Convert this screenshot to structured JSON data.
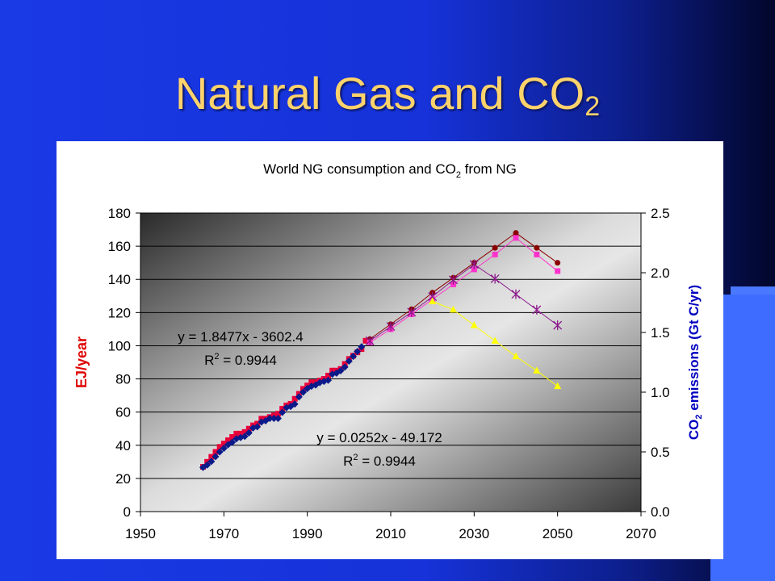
{
  "slide": {
    "title_main": "Natural Gas and CO",
    "title_sub": "2"
  },
  "colors": {
    "title": "#ffd36b",
    "left_axis_label": "#e00000",
    "right_axis_label": "#0000c0",
    "historic_ej": "#e8003a",
    "historic_co2": "#0a1a8a",
    "projection_ej": "#ff33cc",
    "projection_peak": "#8b0000",
    "projection_co2_star": "#8b1a8b",
    "projection_co2_low": "#ffff00"
  },
  "chart_data": {
    "type": "scatter",
    "title_main": "World NG consumption and CO",
    "title_sub": "2",
    "title_tail": " from NG",
    "ylabel_left": "EJ/year",
    "ylabel_right_pre": "CO",
    "ylabel_right_sub": "2",
    "ylabel_right_post": " emissions (Gt C/yr)",
    "xlim": [
      1950,
      2070
    ],
    "ylim_left": [
      0,
      180
    ],
    "ylim_right": [
      0,
      2.5
    ],
    "x_ticks": [
      1950,
      1970,
      1990,
      2010,
      2030,
      2050,
      2070
    ],
    "y_ticks_left": [
      0,
      20,
      40,
      60,
      80,
      100,
      120,
      140,
      160,
      180
    ],
    "y_ticks_right": [
      "0.0",
      "0.5",
      "1.0",
      "1.5",
      "2.0",
      "2.5"
    ],
    "grid": "horizontal",
    "annotations": [
      {
        "eq": "y = 1.8477x - 3602.4",
        "r2_pre": "R",
        "r2_sup": "2",
        "r2_post": " = 0.9944"
      },
      {
        "eq": "y = 0.0252x - 49.172",
        "r2_pre": "R",
        "r2_sup": "2",
        "r2_post": " = 0.9944"
      }
    ],
    "series": [
      {
        "axis": "left",
        "marker": "square",
        "color": "#e8003a",
        "x": [
          1965,
          1966,
          1967,
          1968,
          1969,
          1970,
          1971,
          1972,
          1973,
          1974,
          1975,
          1976,
          1977,
          1978,
          1979,
          1980,
          1981,
          1982,
          1983,
          1984,
          1985,
          1986,
          1987,
          1988,
          1989,
          1990,
          1991,
          1992,
          1993,
          1994,
          1995,
          1996,
          1997,
          1998,
          1999,
          2000,
          2001,
          2002,
          2003,
          2004
        ],
        "y": [
          27,
          30,
          33,
          36,
          39,
          41,
          43,
          45,
          47,
          47,
          48,
          50,
          52,
          53,
          56,
          56,
          57,
          58,
          59,
          62,
          64,
          65,
          68,
          71,
          74,
          76,
          78,
          78,
          79,
          80,
          82,
          85,
          85,
          86,
          89,
          92,
          94,
          96,
          98,
          103
        ]
      },
      {
        "axis": "right",
        "marker": "diamond",
        "color": "#0a1a8a",
        "x": [
          1965,
          1966,
          1967,
          1968,
          1969,
          1970,
          1971,
          1972,
          1973,
          1974,
          1975,
          1976,
          1977,
          1978,
          1979,
          1980,
          1981,
          1982,
          1983,
          1984,
          1985,
          1986,
          1987,
          1988,
          1989,
          1990,
          1991,
          1992,
          1993,
          1994,
          1995,
          1996,
          1997,
          1998,
          1999,
          2000,
          2001,
          2002,
          2003
        ],
        "y": [
          0.37,
          0.39,
          0.42,
          0.46,
          0.5,
          0.53,
          0.56,
          0.58,
          0.61,
          0.62,
          0.63,
          0.66,
          0.7,
          0.71,
          0.75,
          0.76,
          0.78,
          0.78,
          0.78,
          0.83,
          0.87,
          0.88,
          0.9,
          0.96,
          1.0,
          1.03,
          1.05,
          1.06,
          1.08,
          1.09,
          1.1,
          1.15,
          1.16,
          1.18,
          1.21,
          1.26,
          1.3,
          1.34,
          1.38
        ]
      },
      {
        "axis": "left",
        "marker": "circle",
        "color": "#8b0000",
        "x": [
          2005,
          2010,
          2015,
          2020,
          2025,
          2030,
          2035,
          2040,
          2045,
          2050
        ],
        "y": [
          104,
          113,
          122,
          132,
          141,
          150,
          159,
          168,
          159,
          150
        ]
      },
      {
        "axis": "left",
        "marker": "square",
        "color": "#ff33cc",
        "x": [
          2005,
          2010,
          2015,
          2020,
          2025,
          2030,
          2035,
          2040,
          2045,
          2050
        ],
        "y": [
          102,
          110,
          119,
          128,
          137,
          146,
          155,
          165,
          155,
          145
        ]
      },
      {
        "axis": "right",
        "marker": "star",
        "color": "#8b1a8b",
        "x": [
          2005,
          2010,
          2015,
          2020,
          2025,
          2030,
          2035,
          2040,
          2045,
          2050
        ],
        "y": [
          1.43,
          1.55,
          1.67,
          1.8,
          1.94,
          2.07,
          1.95,
          1.82,
          1.69,
          1.56
        ]
      },
      {
        "axis": "right",
        "marker": "triangle",
        "color": "#ffff00",
        "x": [
          2020,
          2025,
          2030,
          2035,
          2040,
          2045,
          2050
        ],
        "y": [
          1.76,
          1.69,
          1.56,
          1.43,
          1.3,
          1.18,
          1.05
        ]
      }
    ]
  }
}
